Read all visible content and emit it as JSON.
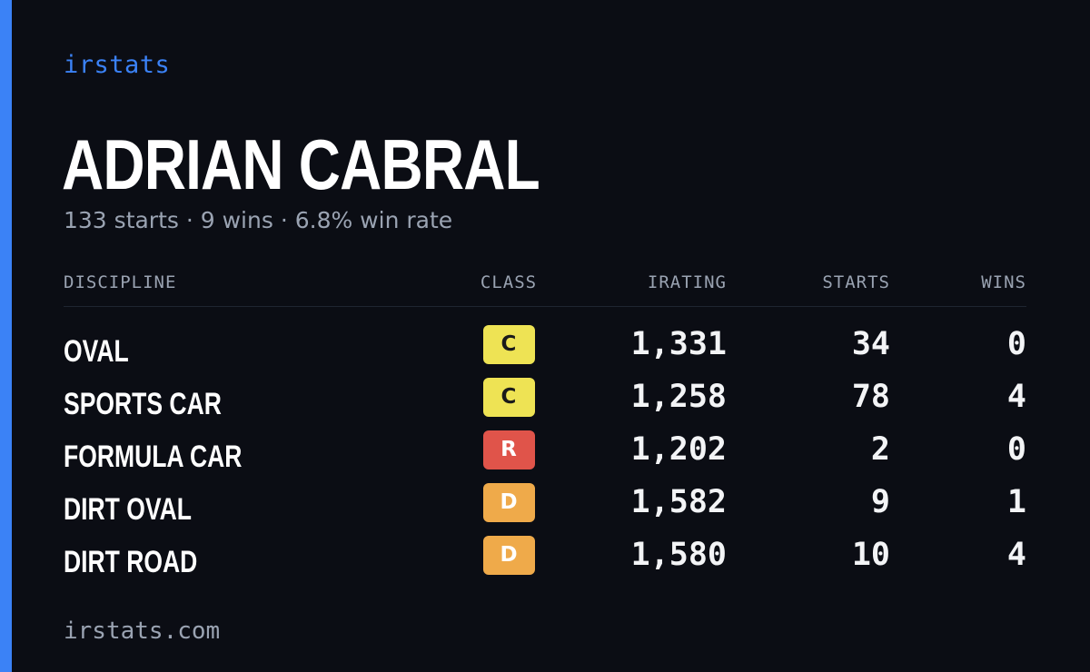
{
  "brand": "irstats",
  "driver": {
    "name": "ADRIAN CABRAL",
    "summary": "133 starts · 9 wins · 6.8% win rate"
  },
  "table": {
    "headers": {
      "discipline": "DISCIPLINE",
      "class": "CLASS",
      "irating": "IRATING",
      "starts": "STARTS",
      "wins": "WINS"
    },
    "rows": [
      {
        "discipline": "OVAL",
        "class": "C",
        "class_color": "#eee354",
        "class_text_color": "#1a1a1a",
        "irating": "1,331",
        "starts": "34",
        "wins": "0"
      },
      {
        "discipline": "SPORTS CAR",
        "class": "C",
        "class_color": "#eee354",
        "class_text_color": "#1a1a1a",
        "irating": "1,258",
        "starts": "78",
        "wins": "4"
      },
      {
        "discipline": "FORMULA CAR",
        "class": "R",
        "class_color": "#e0544a",
        "class_text_color": "#ffffff",
        "irating": "1,202",
        "starts": "2",
        "wins": "0"
      },
      {
        "discipline": "DIRT OVAL",
        "class": "D",
        "class_color": "#efaa4a",
        "class_text_color": "#ffffff",
        "irating": "1,582",
        "starts": "9",
        "wins": "1"
      },
      {
        "discipline": "DIRT ROAD",
        "class": "D",
        "class_color": "#efaa4a",
        "class_text_color": "#ffffff",
        "irating": "1,580",
        "starts": "10",
        "wins": "4"
      }
    ]
  },
  "footer": "irstats.com",
  "colors": {
    "background": "#0b0d14",
    "accent": "#3b82f6",
    "muted": "#9aa3b2"
  }
}
